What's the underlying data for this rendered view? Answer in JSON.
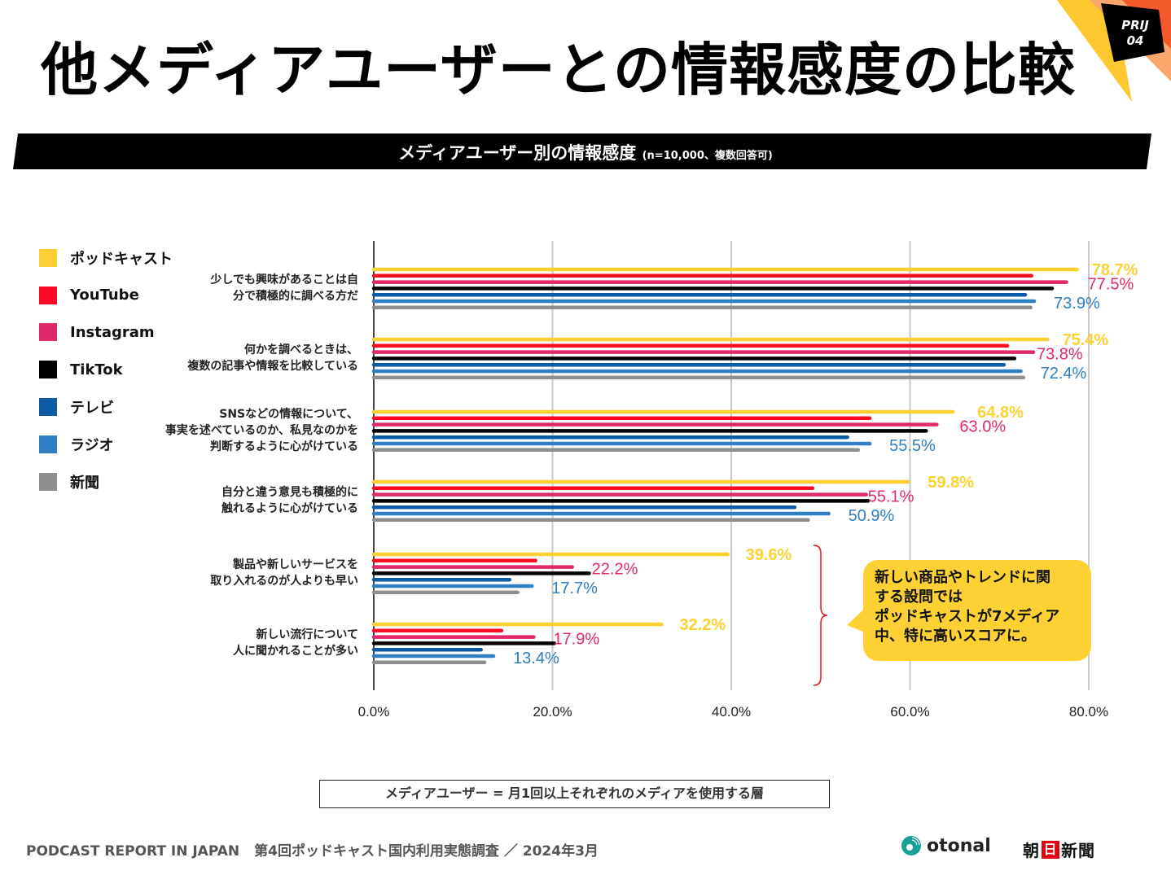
{
  "page": {
    "title": "他メディアユーザーとの情報感度の比較",
    "badge_line1": "PRIJ",
    "badge_line2": "04",
    "subtitle": "メディアユーザー別の情報感度",
    "subtitle_note": "(n=10,000、複数回答可)"
  },
  "legend": [
    {
      "label": "ポッドキャスト",
      "color": "#fdd133"
    },
    {
      "label": "YouTube",
      "color": "#ff0a25"
    },
    {
      "label": "Instagram",
      "color": "#e0286a"
    },
    {
      "label": "TikTok",
      "color": "#000000"
    },
    {
      "label": "テレビ",
      "color": "#0a5aa5"
    },
    {
      "label": "ラジオ",
      "color": "#2f7fc2"
    },
    {
      "label": "新聞",
      "color": "#8e8e8e"
    }
  ],
  "callout": {
    "text_lines": [
      "新しい商品やトレンドに関",
      "する設問では",
      "ポッドキャストが7メディア",
      "中、特に高いスコアに。"
    ],
    "color": "#fdd133"
  },
  "definition": "メディアユーザー = 月1回以上それぞれのメディアを使用する層",
  "footer": {
    "left": "PODCAST REPORT IN JAPAN",
    "right": "第4回ポッドキャスト国内利用実態調査 ／ 2024年3月",
    "logo1": "otonal",
    "logo2_pre": "朝",
    "logo2_box": "日",
    "logo2_post": "新聞"
  },
  "chart_data": {
    "type": "bar",
    "orientation": "horizontal",
    "title": "メディアユーザー別の情報感度",
    "subtitle": "(n=10,000、複数回答可)",
    "xlabel": "",
    "ylabel": "",
    "xlim": [
      0,
      80
    ],
    "x_ticks": [
      "0.0%",
      "20.0%",
      "40.0%",
      "60.0%",
      "80.0%"
    ],
    "x_tick_values": [
      0,
      20,
      40,
      60,
      80
    ],
    "grid": true,
    "legend_position": "left",
    "categories": [
      [
        "少しでも興味があることは自",
        "分で積極的に調べる方だ"
      ],
      [
        "何かを調べるときは、",
        "複数の記事や情報を比較している"
      ],
      [
        "SNSなどの情報について、",
        "事実を述べているのか、私見なのかを",
        "判断するように心がけている"
      ],
      [
        "自分と違う意見も積極的に",
        "触れるように心がけている"
      ],
      [
        "製品や新しいサービスを",
        "取り入れるのが人よりも早い"
      ],
      [
        "新しい流行について",
        "人に聞かれることが多い"
      ]
    ],
    "series": [
      {
        "name": "ポッドキャスト",
        "color": "#fdd133",
        "values": [
          78.7,
          75.4,
          64.8,
          59.8,
          39.6,
          32.2
        ]
      },
      {
        "name": "YouTube",
        "color": "#ff0a25",
        "values": [
          73.6,
          70.9,
          55.5,
          49.1,
          18.1,
          14.3
        ]
      },
      {
        "name": "Instagram",
        "color": "#e0286a",
        "values": [
          77.5,
          73.8,
          63.0,
          55.1,
          22.2,
          17.9
        ]
      },
      {
        "name": "TikTok",
        "color": "#000000",
        "values": [
          75.9,
          71.7,
          61.8,
          55.3,
          24.1,
          20.2
        ]
      },
      {
        "name": "テレビ",
        "color": "#0a5aa5",
        "values": [
          72.9,
          70.5,
          53.0,
          47.1,
          15.2,
          12.0
        ]
      },
      {
        "name": "ラジオ",
        "color": "#2f7fc2",
        "values": [
          73.9,
          72.4,
          55.5,
          50.9,
          17.7,
          13.4
        ]
      },
      {
        "name": "新聞",
        "color": "#8e8e8e",
        "values": [
          73.5,
          72.7,
          54.2,
          48.6,
          16.1,
          12.4
        ]
      }
    ],
    "data_labels": [
      {
        "series": "ポッドキャスト",
        "labels": [
          "78.7%",
          "75.4%",
          "64.8%",
          "59.8%",
          "39.6%",
          "32.2%"
        ]
      },
      {
        "series": "Instagram",
        "labels": [
          "77.5%",
          "73.8%",
          "63.0%",
          "55.1%",
          "22.2%",
          "17.9%"
        ]
      },
      {
        "series": "ラジオ",
        "labels": [
          "73.9%",
          "72.4%",
          "55.5%",
          "50.9%",
          "17.7%",
          "13.4%"
        ]
      }
    ]
  }
}
